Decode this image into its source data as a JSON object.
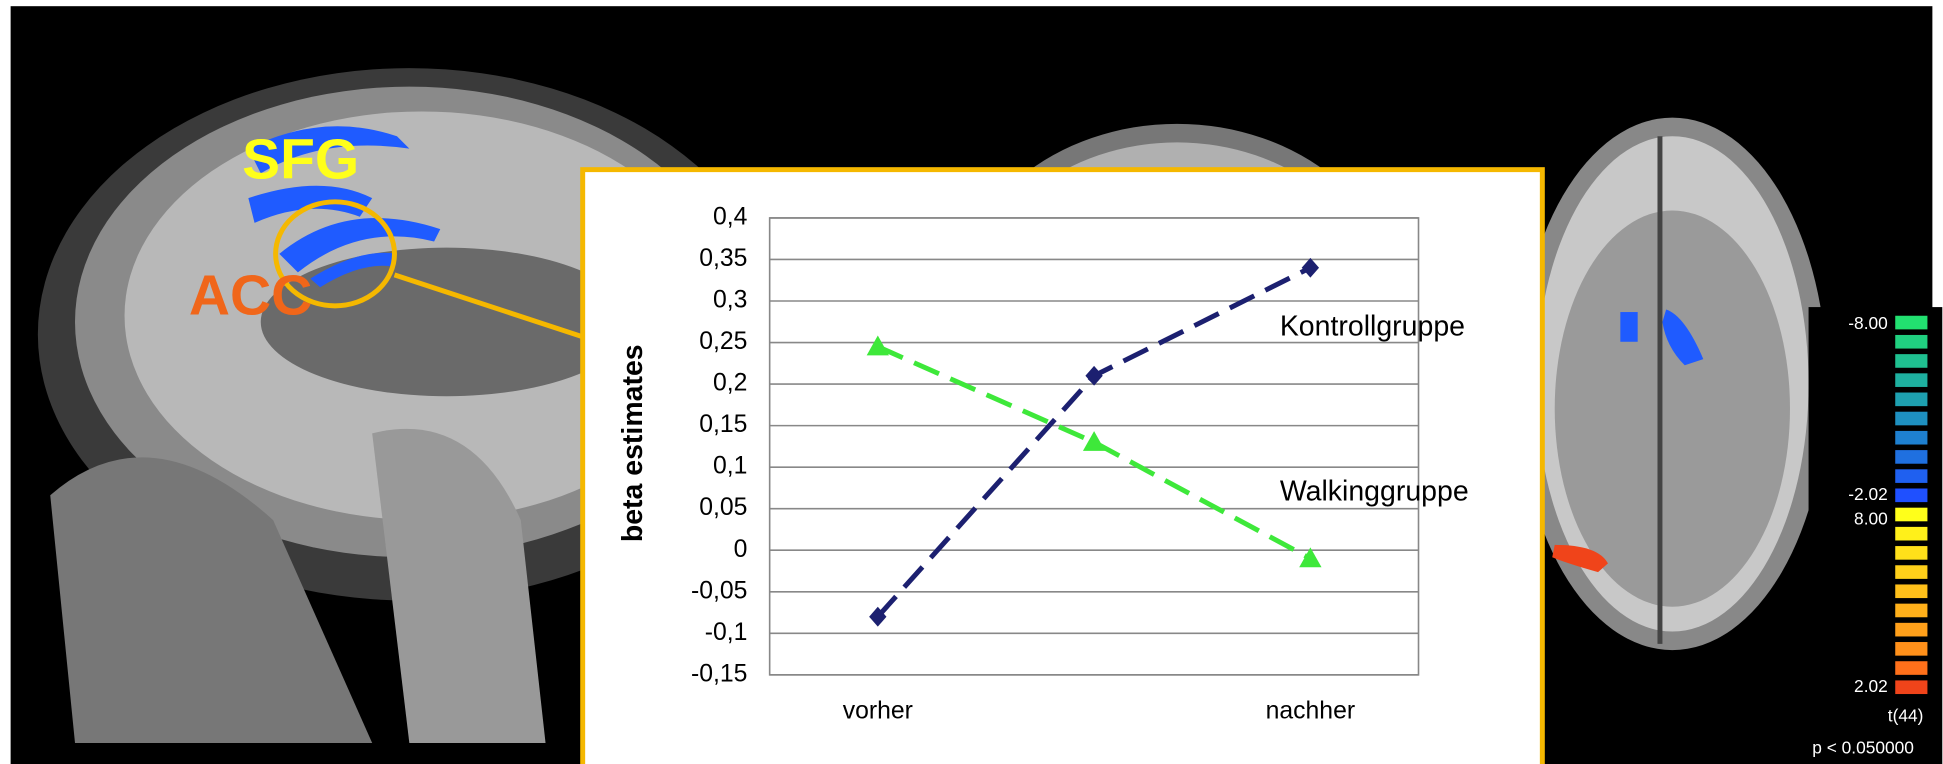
{
  "chart_data": {
    "type": "line",
    "y_label": "beta estimates",
    "categories": [
      "vorher",
      null,
      "nachher"
    ],
    "series": [
      {
        "name": "Kontrollgruppe",
        "color": "#1c2070",
        "marker": "diamond",
        "values": [
          -0.08,
          0.21,
          0.34
        ]
      },
      {
        "name": "Walkinggruppe",
        "color": "#3ee83a",
        "marker": "triangle",
        "values": [
          0.245,
          0.13,
          -0.01
        ]
      }
    ],
    "ylim": [
      -0.15,
      0.4
    ],
    "yticks": [
      {
        "value": -0.15,
        "label": "-0,15"
      },
      {
        "value": -0.1,
        "label": "-0,1"
      },
      {
        "value": -0.05,
        "label": "-0,05"
      },
      0,
      {
        "value": 0.05,
        "label": "0,05"
      },
      {
        "value": 0.1,
        "label": "0,1"
      },
      {
        "value": 0.15,
        "label": "0,15"
      },
      {
        "value": 0.2,
        "label": "0,2"
      },
      {
        "value": 0.25,
        "label": "0,25"
      },
      {
        "value": 0.3,
        "label": "0,3"
      },
      {
        "value": 0.35,
        "label": "0,35"
      },
      {
        "value": 0.4,
        "label": "0,4"
      }
    ],
    "grid": true
  },
  "brain_labels": {
    "regions": [
      "SFG",
      "ACC"
    ],
    "colorbar": [
      "-8.00",
      "-2.02",
      "8.00",
      "2.02"
    ],
    "statistic": "t(44)",
    "threshold": "p < 0.050000"
  }
}
